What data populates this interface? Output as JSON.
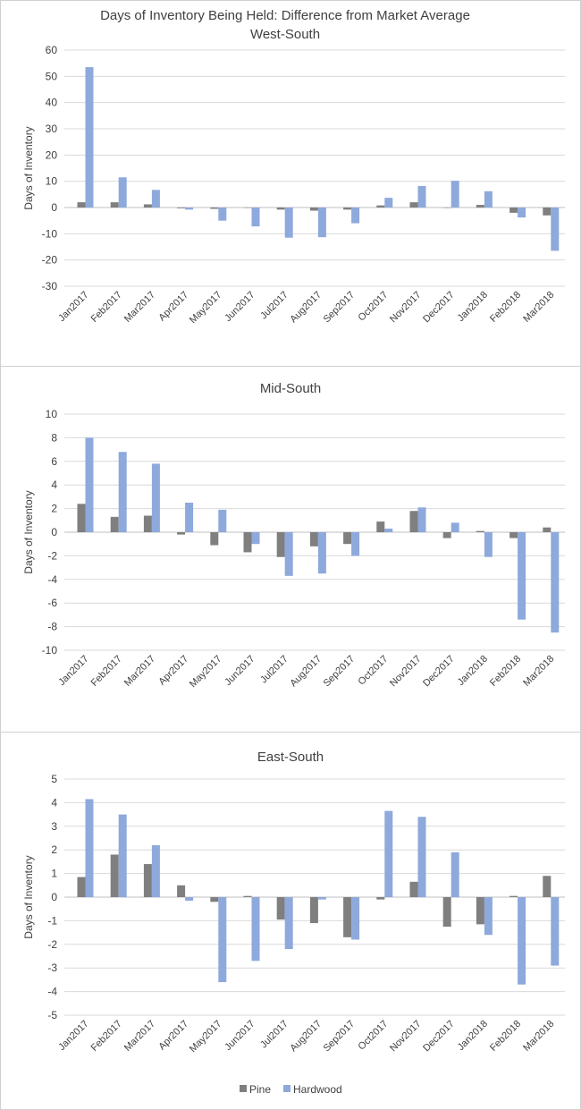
{
  "colors": {
    "pine": "#7f7f7f",
    "hardwood": "#8ea9db"
  },
  "legend": {
    "pine": "Pine",
    "hardwood": "Hardwood"
  },
  "chart_data": [
    {
      "type": "bar",
      "title": "Days of Inventory Being Held: Difference from Market Average",
      "subtitle": "West-South",
      "ylabel": "Days of Inventory",
      "ylim": [
        -30,
        60
      ],
      "yticks": [
        60,
        50,
        40,
        30,
        20,
        10,
        0,
        -10,
        -20,
        -30
      ],
      "categories": [
        "Jan2017",
        "Feb2017",
        "Mar2017",
        "Apr2017",
        "May2017",
        "Jun2017",
        "Jul2017",
        "Aug2017",
        "Sep2017",
        "Oct2017",
        "Nov2017",
        "Dec2017",
        "Jan2018",
        "Feb2018",
        "Mar2018"
      ],
      "series": [
        {
          "name": "Pine",
          "values": [
            2,
            2,
            1.2,
            -0.3,
            -0.5,
            0,
            -0.8,
            -1.2,
            -0.8,
            0.8,
            2,
            0,
            1,
            -2,
            -3
          ]
        },
        {
          "name": "Hardwood",
          "values": [
            53.5,
            11.5,
            6.7,
            -0.8,
            -5,
            -7.2,
            -11.5,
            -11.3,
            -6,
            3.7,
            8.2,
            10.2,
            6.2,
            -3.8,
            -16.5
          ]
        }
      ]
    },
    {
      "type": "bar",
      "title": "Mid-South",
      "ylabel": "Days of Inventory",
      "ylim": [
        -10,
        10
      ],
      "yticks": [
        10,
        8,
        6,
        4,
        2,
        0,
        -2,
        -4,
        -6,
        -8,
        -10
      ],
      "categories": [
        "Jan2017",
        "Feb2017",
        "Mar2017",
        "Apr2017",
        "May2017",
        "Jun2017",
        "Jul2017",
        "Aug2017",
        "Sep2017",
        "Oct2017",
        "Nov2017",
        "Dec2017",
        "Jan2018",
        "Feb2018",
        "Mar2018"
      ],
      "series": [
        {
          "name": "Pine",
          "values": [
            2.4,
            1.3,
            1.4,
            -0.2,
            -1.1,
            -1.7,
            -2.1,
            -1.2,
            -1,
            0.9,
            1.8,
            -0.5,
            0.1,
            -0.5,
            0.4
          ]
        },
        {
          "name": "Hardwood",
          "values": [
            8,
            6.8,
            5.8,
            2.5,
            1.9,
            -1,
            -3.7,
            -3.5,
            -2,
            0.3,
            2.1,
            0.8,
            -2.1,
            -7.4,
            -8.5
          ]
        }
      ]
    },
    {
      "type": "bar",
      "title": "East-South",
      "ylabel": "Days of Inventory",
      "ylim": [
        -5,
        5
      ],
      "yticks": [
        5,
        4,
        3,
        2,
        1,
        0,
        -1,
        -2,
        -3,
        -4,
        -5
      ],
      "categories": [
        "Jan2017",
        "Feb2017",
        "Mar2017",
        "Apr2017",
        "May2017",
        "Jun2017",
        "Jul2017",
        "Aug2017",
        "Sep2017",
        "Oct2017",
        "Nov2017",
        "Dec2017",
        "Jan2018",
        "Feb2018",
        "Mar2018"
      ],
      "series": [
        {
          "name": "Pine",
          "values": [
            0.85,
            1.8,
            1.4,
            0.5,
            -0.2,
            0.05,
            -0.95,
            -1.1,
            -1.7,
            -0.1,
            0.65,
            -1.25,
            -1.15,
            0.05,
            0.9
          ]
        },
        {
          "name": "Hardwood",
          "values": [
            4.15,
            3.5,
            2.2,
            -0.15,
            -3.6,
            -2.7,
            -2.2,
            -0.1,
            -1.8,
            3.65,
            3.4,
            1.9,
            -1.6,
            -3.7,
            -2.9
          ]
        }
      ]
    }
  ]
}
